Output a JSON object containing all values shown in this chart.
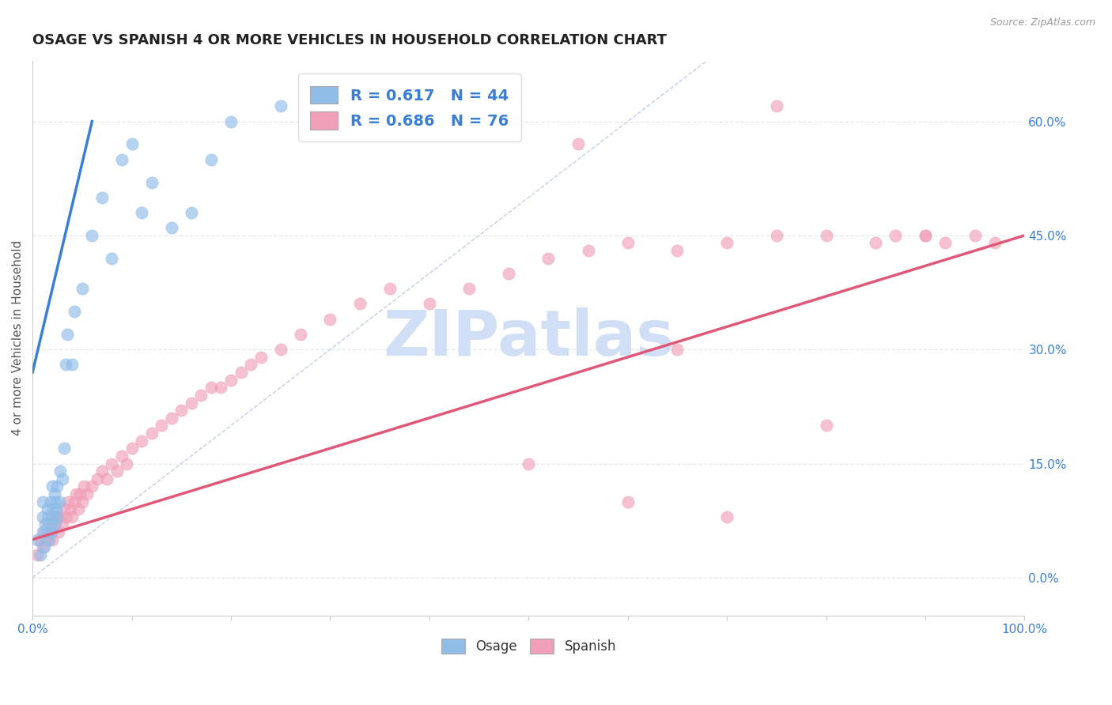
{
  "title": "OSAGE VS SPANISH 4 OR MORE VEHICLES IN HOUSEHOLD CORRELATION CHART",
  "source_text": "Source: ZipAtlas.com",
  "ylabel": "4 or more Vehicles in Household",
  "xlim": [
    0.0,
    1.0
  ],
  "ylim": [
    -0.05,
    0.68
  ],
  "xticks": [
    0.0,
    0.1,
    0.2,
    0.3,
    0.4,
    0.5,
    0.6,
    0.7,
    0.8,
    0.9,
    1.0
  ],
  "yticks": [
    0.0,
    0.15,
    0.3,
    0.45,
    0.6
  ],
  "ytick_labels": [
    "0.0%",
    "15.0%",
    "30.0%",
    "45.0%",
    "60.0%"
  ],
  "xtick_labels": [
    "0.0%",
    "",
    "",
    "",
    "",
    "",
    "",
    "",
    "",
    "",
    "100.0%"
  ],
  "osage_color": "#90bce8",
  "spanish_color": "#f0a0b8",
  "osage_line_color": "#3a7fd5",
  "spanish_line_color": "#e05878",
  "ref_line_color": "#c0cfe8",
  "watermark": "ZIPatlas",
  "watermark_color": "#d0dff5",
  "legend_r_osage": "R = 0.617",
  "legend_n_osage": "N = 44",
  "legend_r_spanish": "R = 0.686",
  "legend_n_spanish": "N = 76",
  "osage_x": [
    0.005,
    0.008,
    0.01,
    0.01,
    0.01,
    0.012,
    0.013,
    0.015,
    0.015,
    0.016,
    0.017,
    0.018,
    0.018,
    0.019,
    0.02,
    0.02,
    0.021,
    0.022,
    0.022,
    0.023,
    0.024,
    0.025,
    0.025,
    0.027,
    0.028,
    0.03,
    0.032,
    0.033,
    0.035,
    0.04,
    0.042,
    0.05,
    0.06,
    0.07,
    0.08,
    0.09,
    0.1,
    0.11,
    0.12,
    0.14,
    0.16,
    0.18,
    0.2,
    0.25
  ],
  "osage_y": [
    0.05,
    0.03,
    0.06,
    0.08,
    0.1,
    0.04,
    0.07,
    0.06,
    0.09,
    0.08,
    0.05,
    0.07,
    0.1,
    0.06,
    0.08,
    0.12,
    0.09,
    0.07,
    0.11,
    0.1,
    0.09,
    0.12,
    0.08,
    0.1,
    0.14,
    0.13,
    0.17,
    0.28,
    0.32,
    0.28,
    0.35,
    0.38,
    0.45,
    0.5,
    0.42,
    0.55,
    0.57,
    0.48,
    0.52,
    0.46,
    0.48,
    0.55,
    0.6,
    0.62
  ],
  "spanish_x": [
    0.005,
    0.008,
    0.01,
    0.012,
    0.014,
    0.016,
    0.018,
    0.02,
    0.022,
    0.024,
    0.026,
    0.028,
    0.03,
    0.032,
    0.034,
    0.036,
    0.038,
    0.04,
    0.042,
    0.044,
    0.046,
    0.048,
    0.05,
    0.052,
    0.055,
    0.06,
    0.065,
    0.07,
    0.075,
    0.08,
    0.085,
    0.09,
    0.095,
    0.1,
    0.11,
    0.12,
    0.13,
    0.14,
    0.15,
    0.16,
    0.17,
    0.18,
    0.19,
    0.2,
    0.21,
    0.22,
    0.23,
    0.25,
    0.27,
    0.3,
    0.33,
    0.36,
    0.4,
    0.44,
    0.48,
    0.52,
    0.56,
    0.6,
    0.65,
    0.7,
    0.75,
    0.8,
    0.85,
    0.87,
    0.9,
    0.92,
    0.95,
    0.97,
    0.5,
    0.55,
    0.6,
    0.65,
    0.7,
    0.75,
    0.8,
    0.9
  ],
  "spanish_y": [
    0.03,
    0.05,
    0.04,
    0.06,
    0.05,
    0.07,
    0.06,
    0.05,
    0.07,
    0.08,
    0.06,
    0.08,
    0.07,
    0.09,
    0.08,
    0.1,
    0.09,
    0.08,
    0.1,
    0.11,
    0.09,
    0.11,
    0.1,
    0.12,
    0.11,
    0.12,
    0.13,
    0.14,
    0.13,
    0.15,
    0.14,
    0.16,
    0.15,
    0.17,
    0.18,
    0.19,
    0.2,
    0.21,
    0.22,
    0.23,
    0.24,
    0.25,
    0.25,
    0.26,
    0.27,
    0.28,
    0.29,
    0.3,
    0.32,
    0.34,
    0.36,
    0.38,
    0.36,
    0.38,
    0.4,
    0.42,
    0.43,
    0.44,
    0.43,
    0.44,
    0.45,
    0.45,
    0.44,
    0.45,
    0.45,
    0.44,
    0.45,
    0.44,
    0.15,
    0.57,
    0.1,
    0.3,
    0.08,
    0.62,
    0.2,
    0.45
  ],
  "osage_trend": [
    0.0,
    0.27,
    0.06,
    0.6
  ],
  "spanish_trend": [
    0.0,
    0.05,
    1.0,
    0.45
  ],
  "ref_line": [
    0.0,
    0.0,
    0.68,
    0.68
  ],
  "background_color": "#ffffff",
  "grid_color": "#e0e8f0",
  "title_fontsize": 13,
  "axis_fontsize": 11,
  "tick_fontsize": 11,
  "legend_fontsize": 14,
  "legend_color": "#3a7fd5"
}
